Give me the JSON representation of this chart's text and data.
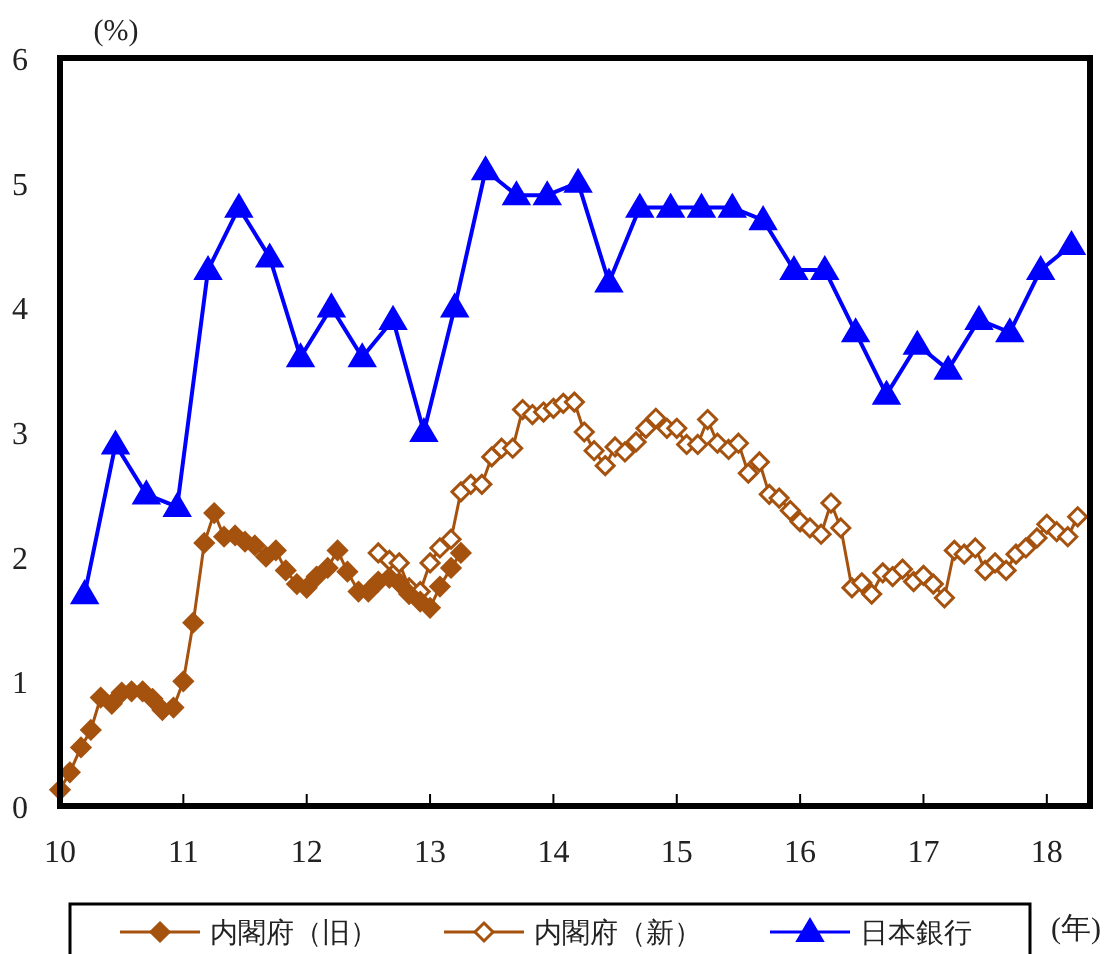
{
  "chart_data": {
    "type": "line",
    "xlabel": "(年)",
    "ylabel": "(%)",
    "xlim": [
      10,
      18.35
    ],
    "ylim": [
      0,
      6
    ],
    "xticks": [
      10,
      11,
      12,
      13,
      14,
      15,
      16,
      17,
      18
    ],
    "yticks": [
      0,
      1,
      2,
      3,
      4,
      5,
      6
    ],
    "grid": false,
    "legend": "bottom",
    "series": [
      {
        "name": "内閣府（旧）",
        "color": "#a5520f",
        "marker": "diamond",
        "x": [
          10.0,
          10.08,
          10.17,
          10.25,
          10.33,
          10.42,
          10.5,
          10.58,
          10.67,
          10.75,
          10.83,
          10.92,
          11.0,
          11.08,
          11.17,
          11.25,
          11.33,
          11.42,
          11.5,
          11.58,
          11.67,
          11.75,
          11.83,
          11.92,
          12.0,
          12.08,
          12.17,
          12.25,
          12.33,
          12.42,
          12.5,
          12.58,
          12.67,
          12.75,
          12.83,
          12.92,
          13.0,
          13.08,
          13.17,
          13.25
        ],
        "values": [
          0.13,
          0.27,
          0.47,
          0.61,
          0.87,
          0.82,
          0.91,
          0.92,
          0.92,
          0.86,
          0.77,
          0.79,
          1.0,
          1.47,
          2.11,
          2.35,
          2.16,
          2.17,
          2.12,
          2.09,
          2.0,
          2.05,
          1.89,
          1.78,
          1.75,
          1.84,
          1.91,
          2.05,
          1.88,
          1.72,
          1.72,
          1.8,
          1.83,
          1.79,
          1.7,
          1.64,
          1.59,
          1.76,
          1.91,
          2.03
        ]
      },
      {
        "name": "内閣府（新）",
        "color": "#a5520f",
        "marker": "diamond",
        "x": [
          12.58,
          12.67,
          12.75,
          12.83,
          12.92,
          13.0,
          13.08,
          13.17,
          13.25,
          13.33,
          13.42,
          13.5,
          13.58,
          13.67,
          13.75,
          13.83,
          13.92,
          14.0,
          14.08,
          14.17,
          14.25,
          14.33,
          14.42,
          14.5,
          14.58,
          14.67,
          14.75,
          14.83,
          14.92,
          15.0,
          15.08,
          15.17,
          15.25,
          15.33,
          15.42,
          15.5,
          15.58,
          15.67,
          15.75,
          15.83,
          15.92,
          16.0,
          16.08,
          16.17,
          16.25,
          16.33,
          16.42,
          16.5,
          16.58,
          16.67,
          16.75,
          16.83,
          16.92,
          17.0,
          17.08,
          17.17,
          17.25,
          17.33,
          17.42,
          17.5,
          17.58,
          17.67,
          17.75,
          17.83,
          17.92,
          18.0,
          18.08,
          18.17,
          18.25
        ],
        "values": [
          2.03,
          1.97,
          1.95,
          1.75,
          1.72,
          1.95,
          2.07,
          2.14,
          2.52,
          2.58,
          2.58,
          2.8,
          2.87,
          2.87,
          3.18,
          3.14,
          3.16,
          3.19,
          3.23,
          3.24,
          3.0,
          2.85,
          2.73,
          2.88,
          2.84,
          2.92,
          3.03,
          3.11,
          3.03,
          3.03,
          2.9,
          2.9,
          3.1,
          2.91,
          2.86,
          2.91,
          2.67,
          2.76,
          2.5,
          2.47,
          2.37,
          2.28,
          2.23,
          2.18,
          2.43,
          2.23,
          1.75,
          1.79,
          1.7,
          1.87,
          1.84,
          1.9,
          1.8,
          1.85,
          1.78,
          1.67,
          2.05,
          2.02,
          2.07,
          1.89,
          1.95,
          1.89,
          2.02,
          2.07,
          2.15,
          2.26,
          2.2,
          2.16,
          2.32
        ]
      },
      {
        "name": "日本銀行",
        "color": "#0000ff",
        "marker": "triangle",
        "x": [
          10.2,
          10.45,
          10.7,
          10.95,
          11.2,
          11.45,
          11.7,
          11.95,
          12.2,
          12.45,
          12.7,
          12.95,
          13.2,
          13.45,
          13.7,
          13.95,
          14.2,
          14.45,
          14.7,
          14.95,
          15.2,
          15.45,
          15.7,
          15.95,
          16.2,
          16.45,
          16.7,
          16.95,
          17.2,
          17.45,
          17.7,
          17.95,
          18.2
        ],
        "values": [
          1.7,
          2.9,
          2.5,
          2.4,
          4.3,
          4.8,
          4.4,
          3.6,
          4.0,
          3.6,
          3.9,
          3.0,
          4.0,
          5.1,
          4.9,
          4.9,
          5.0,
          4.2,
          4.8,
          4.8,
          4.8,
          4.8,
          4.7,
          4.3,
          4.3,
          3.8,
          3.3,
          3.7,
          3.5,
          3.9,
          3.8,
          4.3,
          4.5
        ]
      }
    ]
  }
}
